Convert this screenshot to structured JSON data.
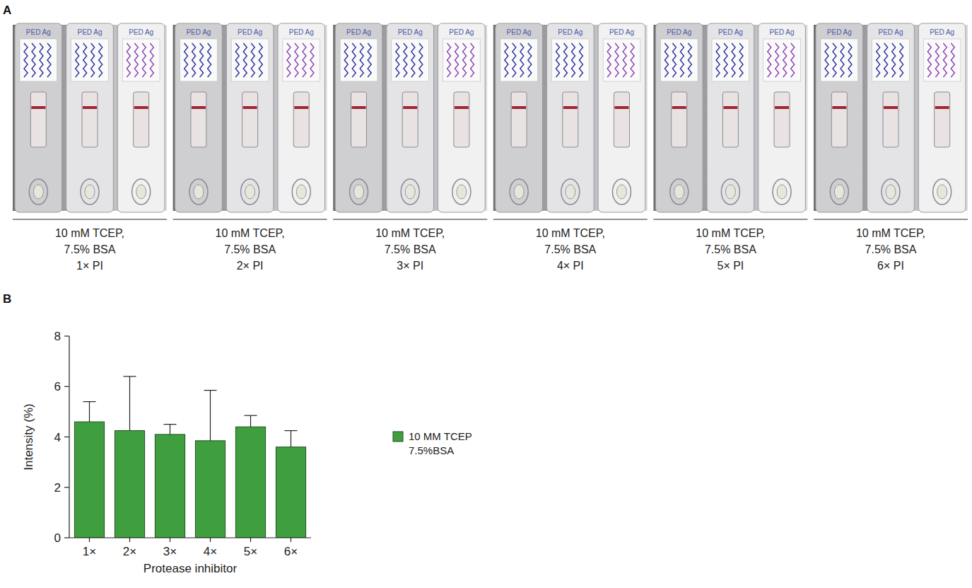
{
  "panels": {
    "a": "A",
    "b": "B"
  },
  "strip_photos": {
    "cassette_label": "PED Ag",
    "groups": [
      {
        "caption": [
          "10 mM TCEP,",
          "7.5% BSA",
          "1× PI"
        ]
      },
      {
        "caption": [
          "10 mM TCEP,",
          "7.5% BSA",
          "2× PI"
        ]
      },
      {
        "caption": [
          "10 mM TCEP,",
          "7.5% BSA",
          "3× PI"
        ]
      },
      {
        "caption": [
          "10 mM TCEP,",
          "7.5% BSA",
          "4× PI"
        ]
      },
      {
        "caption": [
          "10 mM TCEP,",
          "7.5% BSA",
          "5× PI"
        ]
      },
      {
        "caption": [
          "10 mM TCEP,",
          "7.5% BSA",
          "6× PI"
        ]
      }
    ]
  },
  "chart_data": {
    "type": "bar",
    "x_label": "Protease inhibitor",
    "y_label": "Intensity (%)",
    "categories": [
      "1×",
      "2×",
      "3×",
      "4×",
      "5×",
      "6×"
    ],
    "series": [
      {
        "name": "10 MM TCEP 7.5%BSA",
        "color": "#3f9f3f",
        "values": [
          4.6,
          4.25,
          4.1,
          3.85,
          4.4,
          3.6
        ],
        "errors": [
          0.8,
          2.15,
          0.4,
          2.0,
          0.45,
          0.65
        ]
      }
    ],
    "ylim": [
      0,
      8
    ],
    "yticks": [
      0,
      2,
      4,
      6,
      8
    ],
    "grid": false,
    "legend": "right"
  }
}
